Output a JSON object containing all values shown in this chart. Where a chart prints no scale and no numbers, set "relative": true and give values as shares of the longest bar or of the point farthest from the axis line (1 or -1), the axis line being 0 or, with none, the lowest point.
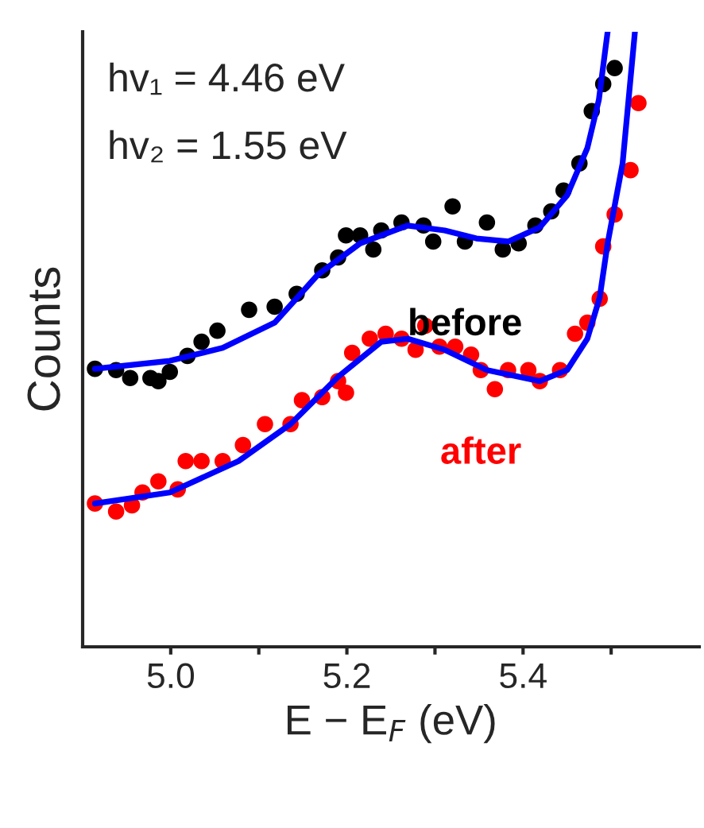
{
  "chart_data": {
    "type": "scatter",
    "relative": true,
    "xlabel": "E − E$_{F}$ (eV)",
    "ylabel": "Counts",
    "marker": "circle",
    "legend": false,
    "grid": false,
    "xlim": [
      4.9,
      5.6
    ],
    "xticks": [
      {
        "value": 5.0,
        "label": "5.0"
      },
      {
        "value": 5.1,
        "label": null
      },
      {
        "value": 5.2,
        "label": "5.2"
      },
      {
        "value": 5.3,
        "label": null
      },
      {
        "value": 5.4,
        "label": "5.4"
      },
      {
        "value": 5.5,
        "label": null
      }
    ],
    "annotations": [
      "hv₁ = 4.46 eV",
      "hv₂ = 1.55 eV"
    ],
    "series": [
      {
        "name": "before",
        "color": "#000000",
        "x": [
          4.914,
          4.938,
          4.954,
          4.977,
          4.986,
          4.999,
          5.019,
          5.035,
          5.053,
          5.089,
          5.118,
          5.143,
          5.172,
          5.19,
          5.199,
          5.215,
          5.23,
          5.239,
          5.262,
          5.287,
          5.298,
          5.32,
          5.334,
          5.359,
          5.377,
          5.395,
          5.414,
          5.432,
          5.446,
          5.464,
          5.478,
          5.491,
          5.504
        ],
        "values": [
          0.452,
          0.45,
          0.437,
          0.437,
          0.432,
          0.447,
          0.473,
          0.496,
          0.514,
          0.548,
          0.553,
          0.574,
          0.612,
          0.633,
          0.669,
          0.669,
          0.646,
          0.677,
          0.69,
          0.685,
          0.659,
          0.716,
          0.659,
          0.69,
          0.646,
          0.656,
          0.685,
          0.708,
          0.742,
          0.786,
          0.871,
          0.915,
          0.941
        ]
      },
      {
        "name": "after",
        "color": "#ff0000",
        "x": [
          4.914,
          4.938,
          4.956,
          4.968,
          4.986,
          5.008,
          5.017,
          5.035,
          5.059,
          5.082,
          5.107,
          5.136,
          5.149,
          5.172,
          5.19,
          5.199,
          5.206,
          5.226,
          5.244,
          5.262,
          5.278,
          5.289,
          5.305,
          5.323,
          5.341,
          5.352,
          5.368,
          5.383,
          5.406,
          5.419,
          5.442,
          5.459,
          5.473,
          5.487,
          5.491,
          5.504,
          5.522,
          5.531
        ],
        "values": [
          0.233,
          0.22,
          0.23,
          0.251,
          0.269,
          0.256,
          0.302,
          0.302,
          0.302,
          0.328,
          0.362,
          0.362,
          0.401,
          0.406,
          0.432,
          0.413,
          0.478,
          0.501,
          0.509,
          0.501,
          0.483,
          0.522,
          0.488,
          0.488,
          0.475,
          0.45,
          0.419,
          0.45,
          0.45,
          0.432,
          0.45,
          0.509,
          0.527,
          0.566,
          0.651,
          0.703,
          0.775,
          0.884
        ]
      },
      {
        "type": "line",
        "marker": "none",
        "color": "#0000ff",
        "x": [
          4.914,
          4.999,
          5.059,
          5.118,
          5.167,
          5.215,
          5.269,
          5.311,
          5.347,
          5.383,
          5.419,
          5.45,
          5.473,
          5.486,
          5.496
        ],
        "values": [
          0.452,
          0.465,
          0.486,
          0.527,
          0.605,
          0.656,
          0.685,
          0.677,
          0.664,
          0.659,
          0.682,
          0.734,
          0.811,
          0.889,
          1.0
        ]
      },
      {
        "type": "line",
        "marker": "none",
        "color": "#0000ff",
        "x": [
          4.914,
          4.999,
          5.077,
          5.136,
          5.19,
          5.239,
          5.269,
          5.311,
          5.359,
          5.419,
          5.45,
          5.473,
          5.487,
          5.496,
          5.513,
          5.527
        ],
        "values": [
          0.233,
          0.251,
          0.302,
          0.362,
          0.439,
          0.496,
          0.501,
          0.483,
          0.45,
          0.432,
          0.45,
          0.501,
          0.568,
          0.656,
          0.786,
          1.0
        ]
      }
    ]
  }
}
